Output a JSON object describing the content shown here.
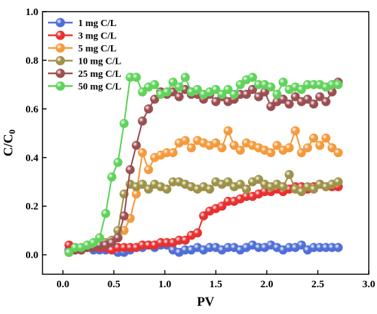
{
  "chart_data": {
    "type": "line",
    "xlabel": "PV",
    "ylabel_main": "C/C",
    "ylabel_sub": "0",
    "xlim": [
      -0.2,
      3.0
    ],
    "ylim": [
      -0.08,
      1.0
    ],
    "xticks": [
      0.0,
      0.5,
      1.0,
      1.5,
      2.0,
      2.5,
      3.0
    ],
    "xtick_labels": [
      "0.0",
      "0.5",
      "1.0",
      "1.5",
      "2.0",
      "2.5",
      "3.0"
    ],
    "yticks": [
      0.0,
      0.2,
      0.4,
      0.6,
      0.8,
      1.0
    ],
    "ytick_labels": [
      "0.0",
      "0.2",
      "0.4",
      "0.6",
      "0.8",
      "1.0"
    ],
    "legend_position": "top-left",
    "series": [
      {
        "name": "1 mg C/L",
        "color": "#4f6fd8",
        "x": [
          0.06,
          0.12,
          0.18,
          0.24,
          0.3,
          0.36,
          0.42,
          0.48,
          0.54,
          0.6,
          0.66,
          0.72,
          0.78,
          0.84,
          0.9,
          0.96,
          1.02,
          1.08,
          1.14,
          1.2,
          1.26,
          1.32,
          1.38,
          1.44,
          1.5,
          1.56,
          1.62,
          1.68,
          1.74,
          1.8,
          1.86,
          1.92,
          1.98,
          2.04,
          2.1,
          2.16,
          2.22,
          2.28,
          2.34,
          2.4,
          2.46,
          2.52,
          2.58,
          2.64,
          2.7
        ],
        "y": [
          0.02,
          0.02,
          0.02,
          0.03,
          0.02,
          0.02,
          0.02,
          0.02,
          0.01,
          0.01,
          0.02,
          0.03,
          0.03,
          0.04,
          0.03,
          0.04,
          0.04,
          0.02,
          0.01,
          0.02,
          0.02,
          0.03,
          0.02,
          0.03,
          0.03,
          0.02,
          0.03,
          0.03,
          0.02,
          0.03,
          0.04,
          0.03,
          0.03,
          0.04,
          0.03,
          0.02,
          0.03,
          0.03,
          0.04,
          0.02,
          0.03,
          0.03,
          0.03,
          0.03,
          0.03
        ]
      },
      {
        "name": "3 mg C/L",
        "color": "#e83030",
        "x": [
          0.06,
          0.12,
          0.18,
          0.24,
          0.3,
          0.36,
          0.42,
          0.48,
          0.54,
          0.6,
          0.66,
          0.72,
          0.78,
          0.84,
          0.9,
          0.96,
          1.02,
          1.08,
          1.14,
          1.2,
          1.26,
          1.32,
          1.38,
          1.44,
          1.5,
          1.56,
          1.62,
          1.68,
          1.74,
          1.8,
          1.86,
          1.92,
          1.98,
          2.04,
          2.1,
          2.16,
          2.22,
          2.28,
          2.34,
          2.4,
          2.46,
          2.52,
          2.58,
          2.64,
          2.7
        ],
        "y": [
          0.04,
          0.03,
          0.02,
          0.03,
          0.03,
          0.03,
          0.03,
          0.02,
          0.03,
          0.03,
          0.03,
          0.03,
          0.04,
          0.04,
          0.04,
          0.05,
          0.05,
          0.05,
          0.06,
          0.06,
          0.08,
          0.09,
          0.16,
          0.18,
          0.19,
          0.2,
          0.22,
          0.22,
          0.23,
          0.24,
          0.24,
          0.25,
          0.26,
          0.26,
          0.27,
          0.26,
          0.27,
          0.28,
          0.28,
          0.27,
          0.28,
          0.29,
          0.28,
          0.28,
          0.28
        ]
      },
      {
        "name": "5 mg C/L",
        "color": "#f59a3c",
        "x": [
          0.06,
          0.12,
          0.18,
          0.24,
          0.3,
          0.36,
          0.42,
          0.48,
          0.54,
          0.6,
          0.66,
          0.72,
          0.78,
          0.84,
          0.9,
          0.96,
          1.02,
          1.08,
          1.14,
          1.2,
          1.26,
          1.32,
          1.38,
          1.44,
          1.5,
          1.56,
          1.62,
          1.68,
          1.74,
          1.8,
          1.86,
          1.92,
          1.98,
          2.04,
          2.1,
          2.16,
          2.22,
          2.28,
          2.34,
          2.4,
          2.46,
          2.52,
          2.58,
          2.64,
          2.7
        ],
        "y": [
          0.01,
          0.02,
          0.02,
          0.03,
          0.03,
          0.04,
          0.04,
          0.05,
          0.07,
          0.1,
          0.15,
          0.25,
          0.42,
          0.35,
          0.4,
          0.41,
          0.42,
          0.42,
          0.46,
          0.47,
          0.44,
          0.47,
          0.46,
          0.45,
          0.46,
          0.44,
          0.51,
          0.45,
          0.43,
          0.46,
          0.45,
          0.44,
          0.43,
          0.42,
          0.45,
          0.43,
          0.44,
          0.51,
          0.42,
          0.44,
          0.48,
          0.45,
          0.48,
          0.44,
          0.42
        ]
      },
      {
        "name": "10 mg C/L",
        "color": "#9e9248",
        "x": [
          0.06,
          0.12,
          0.18,
          0.24,
          0.3,
          0.36,
          0.42,
          0.48,
          0.54,
          0.6,
          0.66,
          0.72,
          0.78,
          0.84,
          0.9,
          0.96,
          1.02,
          1.08,
          1.14,
          1.2,
          1.26,
          1.32,
          1.38,
          1.44,
          1.5,
          1.56,
          1.62,
          1.68,
          1.74,
          1.8,
          1.86,
          1.92,
          1.98,
          2.04,
          2.1,
          2.16,
          2.22,
          2.28,
          2.34,
          2.4,
          2.46,
          2.52,
          2.58,
          2.64,
          2.7
        ],
        "y": [
          0.01,
          0.02,
          0.02,
          0.03,
          0.03,
          0.04,
          0.05,
          0.06,
          0.1,
          0.25,
          0.29,
          0.28,
          0.29,
          0.27,
          0.29,
          0.28,
          0.27,
          0.3,
          0.3,
          0.29,
          0.28,
          0.27,
          0.28,
          0.27,
          0.3,
          0.29,
          0.3,
          0.28,
          0.29,
          0.27,
          0.3,
          0.31,
          0.29,
          0.28,
          0.29,
          0.28,
          0.33,
          0.27,
          0.26,
          0.28,
          0.27,
          0.29,
          0.28,
          0.29,
          0.3
        ]
      },
      {
        "name": "25 mg C/L",
        "color": "#9b4f52",
        "x": [
          0.06,
          0.12,
          0.18,
          0.24,
          0.3,
          0.36,
          0.42,
          0.48,
          0.54,
          0.6,
          0.66,
          0.72,
          0.78,
          0.84,
          0.9,
          0.96,
          1.02,
          1.08,
          1.14,
          1.2,
          1.26,
          1.32,
          1.38,
          1.44,
          1.5,
          1.56,
          1.62,
          1.68,
          1.74,
          1.8,
          1.86,
          1.92,
          1.98,
          2.04,
          2.1,
          2.16,
          2.22,
          2.28,
          2.34,
          2.4,
          2.46,
          2.52,
          2.58,
          2.64,
          2.7
        ],
        "y": [
          0.01,
          0.02,
          0.02,
          0.03,
          0.03,
          0.04,
          0.04,
          0.05,
          0.07,
          0.16,
          0.35,
          0.45,
          0.55,
          0.6,
          0.64,
          0.67,
          0.66,
          0.67,
          0.65,
          0.68,
          0.66,
          0.66,
          0.64,
          0.66,
          0.63,
          0.65,
          0.63,
          0.64,
          0.66,
          0.66,
          0.68,
          0.65,
          0.67,
          0.61,
          0.63,
          0.64,
          0.62,
          0.65,
          0.63,
          0.64,
          0.62,
          0.65,
          0.63,
          0.67,
          0.71
        ]
      },
      {
        "name": "50 mg C/L",
        "color": "#5fd35b",
        "x": [
          0.06,
          0.12,
          0.18,
          0.24,
          0.3,
          0.36,
          0.42,
          0.48,
          0.54,
          0.6,
          0.66,
          0.72,
          0.78,
          0.84,
          0.9,
          0.96,
          1.02,
          1.08,
          1.14,
          1.2,
          1.26,
          1.32,
          1.38,
          1.44,
          1.5,
          1.56,
          1.62,
          1.68,
          1.74,
          1.8,
          1.86,
          1.92,
          1.98,
          2.04,
          2.1,
          2.16,
          2.22,
          2.28,
          2.34,
          2.4,
          2.46,
          2.52,
          2.58,
          2.64,
          2.7
        ],
        "y": [
          0.01,
          0.03,
          0.03,
          0.04,
          0.05,
          0.07,
          0.17,
          0.32,
          0.38,
          0.54,
          0.73,
          0.73,
          0.67,
          0.69,
          0.7,
          0.66,
          0.67,
          0.71,
          0.69,
          0.73,
          0.67,
          0.68,
          0.66,
          0.67,
          0.68,
          0.66,
          0.68,
          0.66,
          0.7,
          0.72,
          0.73,
          0.7,
          0.7,
          0.69,
          0.66,
          0.71,
          0.68,
          0.69,
          0.68,
          0.7,
          0.7,
          0.7,
          0.69,
          0.7,
          0.7
        ]
      }
    ]
  }
}
